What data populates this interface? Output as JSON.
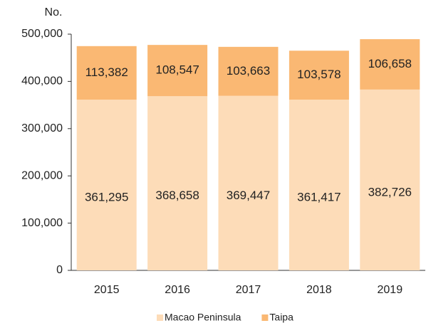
{
  "chart_data": {
    "type": "stacked_bar",
    "y_label": "No.",
    "categories": [
      "2015",
      "2016",
      "2017",
      "2018",
      "2019"
    ],
    "series": [
      {
        "name": "Macao Peninsula",
        "color": "#fddcb8",
        "values": [
          361295,
          368658,
          369447,
          361417,
          382726
        ],
        "value_labels": [
          "361,295",
          "368,658",
          "369,447",
          "361,417",
          "382,726"
        ]
      },
      {
        "name": "Taipa",
        "color": "#fab873",
        "values": [
          113382,
          108547,
          103663,
          103578,
          106658
        ],
        "value_labels": [
          "113,382",
          "108,547",
          "103,663",
          "103,578",
          "106,658"
        ]
      }
    ],
    "ylim": [
      0,
      500000
    ],
    "yticks": [
      0,
      {
        "value": 100000,
        "label": "100,000"
      },
      {
        "value": 200000,
        "label": "200,000"
      },
      {
        "value": 300000,
        "label": "300,000"
      },
      {
        "value": 400000,
        "label": "400,000"
      },
      {
        "value": 500000,
        "label": "500,000"
      }
    ],
    "legend": "bottom"
  }
}
